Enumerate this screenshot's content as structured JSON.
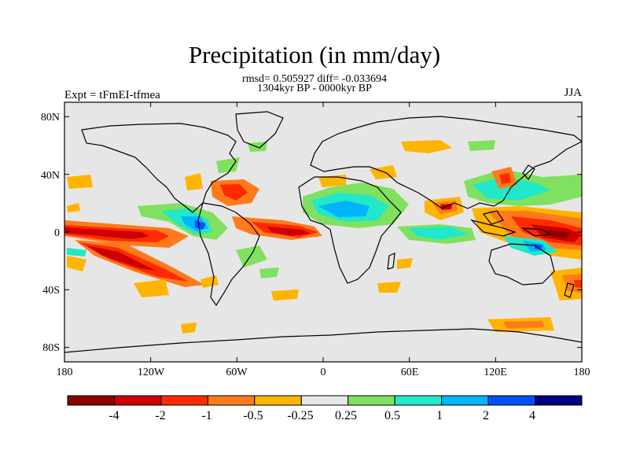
{
  "header": {
    "title": "Precipitation (in mm/day)",
    "stats": "rmsd= 0.505927 diff= -0.033694",
    "period": "1304kyr BP - 0000kyr BP",
    "experiment": "Expt = tFmEI-tfmea",
    "season": "JJA"
  },
  "map": {
    "lon_range": [
      -180,
      180
    ],
    "lat_range": [
      -90,
      90
    ],
    "lat_ticks": [
      "80N",
      "40N",
      "0",
      "40S",
      "80S"
    ],
    "lon_ticks": [
      "180",
      "120W",
      "60W",
      "0",
      "60E",
      "120E",
      "180"
    ],
    "background_color": "#e6e6e6"
  },
  "colorbar": {
    "tick_labels": [
      "-4",
      "-2",
      "-1",
      "-0.5",
      "-0.25",
      "0.25",
      "0.5",
      "1",
      "2",
      "4"
    ],
    "colors": [
      "#8c0000",
      "#cc0000",
      "#ff2a00",
      "#ff7a1a",
      "#ffb400",
      "#e6e6e6",
      "#80e060",
      "#20e8c8",
      "#00b4ff",
      "#0050ff",
      "#000080"
    ]
  }
}
